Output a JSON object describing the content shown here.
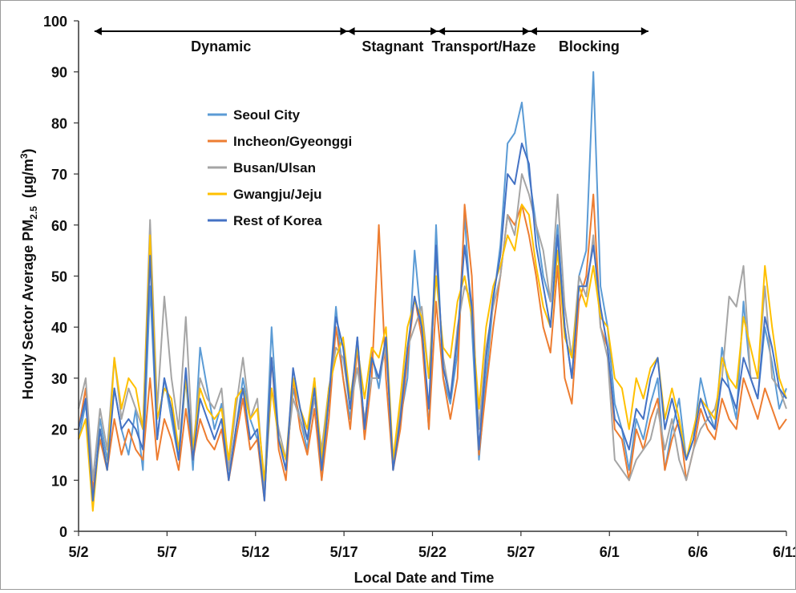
{
  "chart_data": {
    "type": "line",
    "xlabel": "Local Date and Time",
    "ylabel_main": "Hourly Sector Average PM",
    "ylabel_sub": "2.5",
    "ylabel_unit_pre": "(μg/m",
    "ylabel_unit_sup": "3",
    "ylabel_unit_post": ")",
    "ylim": [
      0,
      100
    ],
    "yticks": [
      0,
      10,
      20,
      30,
      40,
      50,
      60,
      70,
      80,
      90,
      100
    ],
    "xlim": [
      0,
      40
    ],
    "xticks": [
      {
        "pos": 0,
        "label": "5/2"
      },
      {
        "pos": 5,
        "label": "5/7"
      },
      {
        "pos": 10,
        "label": "5/12"
      },
      {
        "pos": 15,
        "label": "5/17"
      },
      {
        "pos": 20,
        "label": "5/22"
      },
      {
        "pos": 25,
        "label": "5/27"
      },
      {
        "pos": 30,
        "label": "6/1"
      },
      {
        "pos": 35,
        "label": "6/6"
      },
      {
        "pos": 40,
        "label": "6/11"
      }
    ],
    "grid": false,
    "legend": "upper-left",
    "periods": [
      {
        "label": "Dynamic",
        "start": 0.9,
        "end": 15.2
      },
      {
        "label": "Stagnant",
        "start": 15.2,
        "end": 20.3
      },
      {
        "label": "Transport/Haze",
        "start": 20.3,
        "end": 25.5
      },
      {
        "label": "Blocking",
        "start": 25.5,
        "end": 32.2
      }
    ],
    "series": [
      {
        "name": "Seoul City",
        "color": "#5b9bd5",
        "values": [
          18,
          25,
          10,
          22,
          14,
          28,
          20,
          15,
          24,
          12,
          48,
          18,
          30,
          22,
          14,
          30,
          12,
          36,
          28,
          20,
          25,
          10,
          20,
          30,
          22,
          18,
          8,
          40,
          18,
          12,
          28,
          22,
          16,
          30,
          10,
          26,
          44,
          30,
          22,
          38,
          20,
          35,
          28,
          38,
          12,
          22,
          30,
          55,
          40,
          20,
          60,
          30,
          25,
          35,
          62,
          40,
          14,
          30,
          45,
          56,
          76,
          78,
          84,
          70,
          60,
          50,
          45,
          60,
          40,
          30,
          50,
          55,
          90,
          48,
          40,
          25,
          20,
          12,
          22,
          18,
          25,
          30,
          12,
          20,
          26,
          14,
          18,
          30,
          24,
          20,
          36,
          28,
          22,
          45,
          30,
          26,
          40,
          33,
          24,
          28
        ]
      },
      {
        "name": "Incheon/Gyeonggi",
        "color": "#ed7d31",
        "values": [
          20,
          28,
          8,
          18,
          12,
          22,
          15,
          20,
          16,
          14,
          30,
          14,
          22,
          18,
          12,
          24,
          14,
          22,
          18,
          16,
          20,
          10,
          18,
          26,
          16,
          18,
          6,
          34,
          16,
          10,
          30,
          20,
          15,
          24,
          10,
          22,
          40,
          30,
          20,
          36,
          18,
          30,
          60,
          30,
          12,
          20,
          34,
          46,
          38,
          20,
          45,
          30,
          22,
          30,
          64,
          50,
          15,
          28,
          40,
          50,
          62,
          60,
          64,
          58,
          50,
          40,
          35,
          52,
          30,
          25,
          45,
          50,
          66,
          40,
          36,
          20,
          18,
          10,
          20,
          16,
          22,
          26,
          12,
          18,
          22,
          10,
          16,
          24,
          20,
          18,
          26,
          22,
          20,
          30,
          26,
          22,
          28,
          24,
          20,
          22
        ]
      },
      {
        "name": "Busan/Ulsan",
        "color": "#a5a5a5",
        "values": [
          24,
          30,
          10,
          24,
          16,
          34,
          22,
          28,
          24,
          20,
          61,
          24,
          46,
          30,
          20,
          42,
          16,
          30,
          26,
          24,
          28,
          12,
          24,
          34,
          22,
          26,
          8,
          28,
          20,
          14,
          26,
          22,
          18,
          26,
          16,
          28,
          36,
          34,
          24,
          32,
          22,
          30,
          30,
          36,
          14,
          24,
          36,
          40,
          44,
          30,
          54,
          34,
          26,
          40,
          48,
          45,
          20,
          36,
          44,
          50,
          62,
          58,
          70,
          66,
          60,
          55,
          45,
          66,
          44,
          34,
          50,
          46,
          58,
          40,
          34,
          14,
          12,
          10,
          14,
          16,
          18,
          24,
          16,
          22,
          14,
          10,
          16,
          20,
          22,
          24,
          30,
          46,
          44,
          52,
          30,
          30,
          48,
          30,
          28,
          24
        ]
      },
      {
        "name": "Gwangju/Jeju",
        "color": "#ffc000",
        "values": [
          18,
          22,
          4,
          20,
          12,
          34,
          24,
          30,
          28,
          20,
          58,
          22,
          28,
          26,
          16,
          30,
          16,
          28,
          24,
          22,
          24,
          14,
          26,
          28,
          22,
          24,
          10,
          28,
          18,
          14,
          30,
          24,
          20,
          30,
          14,
          28,
          34,
          38,
          26,
          36,
          26,
          36,
          34,
          40,
          14,
          26,
          40,
          45,
          42,
          30,
          50,
          36,
          34,
          45,
          50,
          42,
          24,
          40,
          48,
          52,
          58,
          55,
          64,
          62,
          52,
          44,
          40,
          55,
          38,
          34,
          48,
          44,
          52,
          42,
          40,
          30,
          28,
          20,
          30,
          26,
          32,
          34,
          22,
          28,
          22,
          14,
          20,
          26,
          24,
          22,
          34,
          30,
          28,
          42,
          36,
          30,
          52,
          40,
          30,
          26
        ]
      },
      {
        "name": "Rest of Korea",
        "color": "#4472c4",
        "values": [
          20,
          26,
          6,
          20,
          12,
          28,
          20,
          22,
          20,
          16,
          54,
          18,
          30,
          24,
          14,
          32,
          14,
          26,
          22,
          18,
          22,
          10,
          20,
          28,
          18,
          20,
          6,
          34,
          18,
          12,
          32,
          24,
          18,
          28,
          12,
          26,
          42,
          36,
          24,
          38,
          20,
          34,
          30,
          38,
          12,
          22,
          36,
          46,
          40,
          24,
          56,
          32,
          26,
          38,
          56,
          44,
          16,
          34,
          46,
          54,
          70,
          68,
          76,
          72,
          56,
          48,
          40,
          58,
          40,
          30,
          48,
          48,
          56,
          44,
          36,
          22,
          20,
          16,
          24,
          22,
          30,
          34,
          20,
          26,
          20,
          14,
          18,
          26,
          22,
          20,
          30,
          28,
          24,
          34,
          30,
          26,
          42,
          36,
          28,
          26
        ]
      }
    ]
  }
}
